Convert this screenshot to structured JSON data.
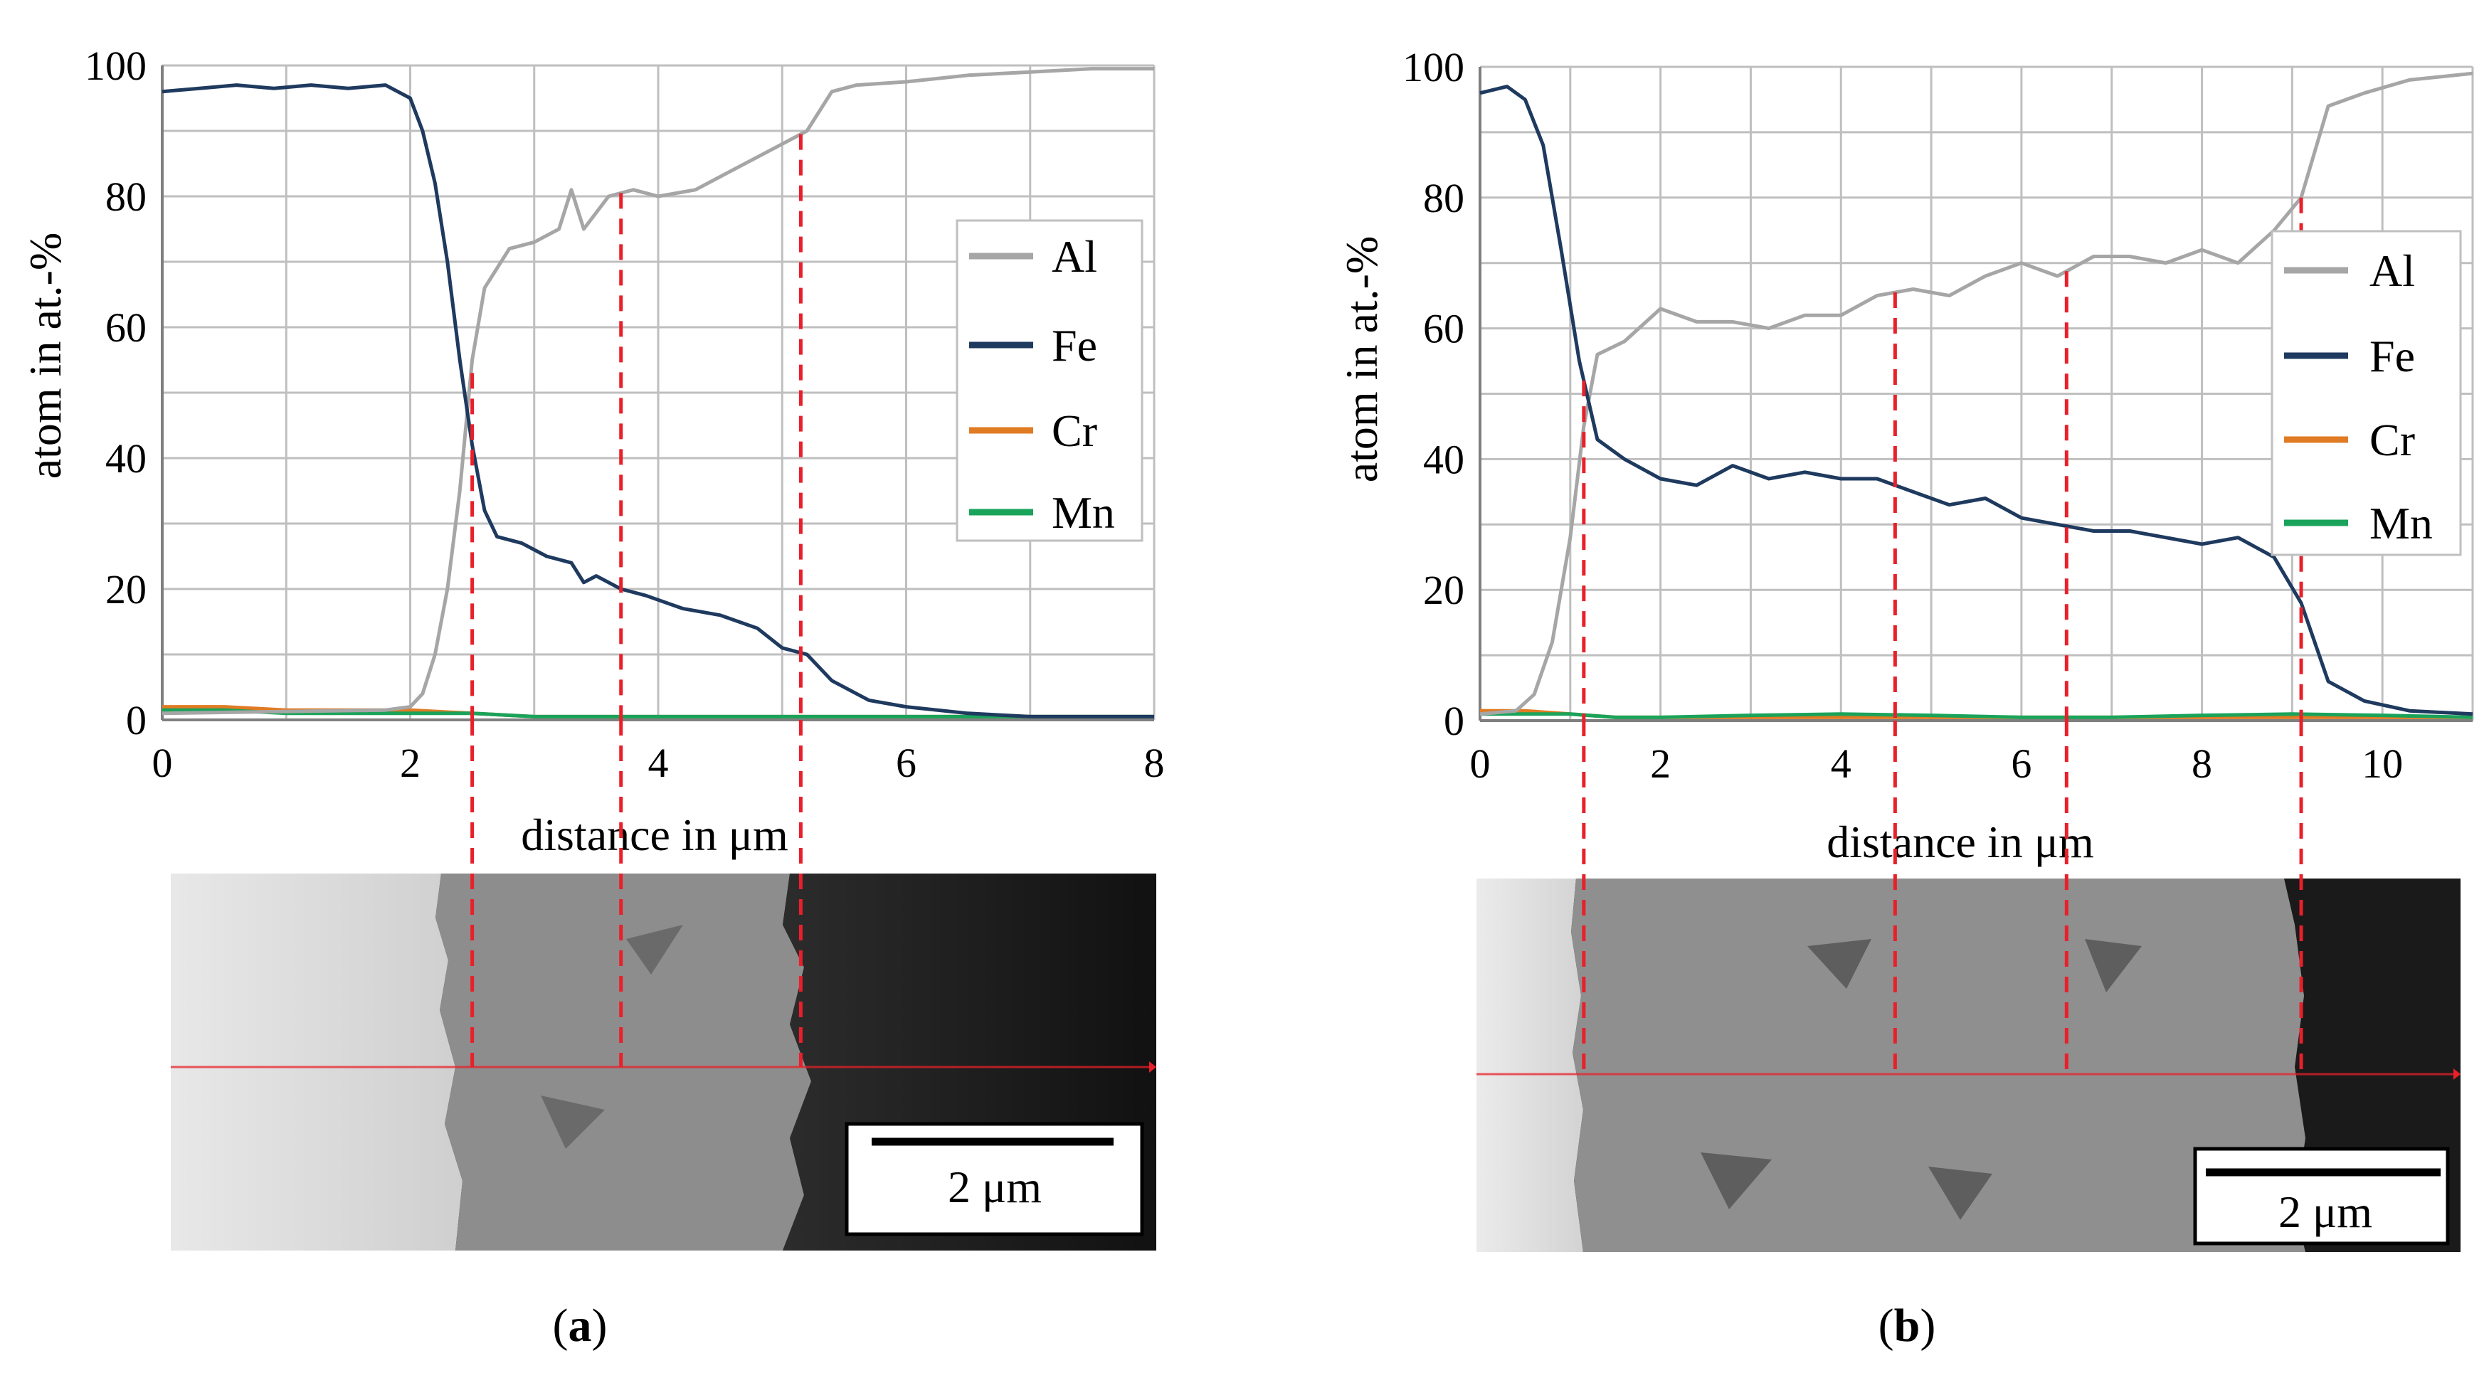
{
  "colors": {
    "Al": "#a6a6a6",
    "Fe": "#1f3a5f",
    "Cr": "#e07b24",
    "Mn": "#1aa35a",
    "marker": "#e8202a",
    "grid": "#bfbfbf"
  },
  "chart_data": [
    {
      "type": "line",
      "panel": "a",
      "caption_open": "(",
      "caption_letter": "a",
      "caption_close": ")",
      "xlabel": "distance in μm",
      "ylabel": "atom in at.-%",
      "xlim": [
        0,
        8
      ],
      "ylim": [
        0,
        100
      ],
      "xticks": [
        0,
        2,
        4,
        6,
        8
      ],
      "yticks": [
        0,
        20,
        40,
        60,
        80,
        100
      ],
      "scale_bar_label": "2 μm",
      "markers_x": [
        2.5,
        3.7,
        5.15
      ],
      "legend": [
        "Al",
        "Fe",
        "Cr",
        "Mn"
      ],
      "series": [
        {
          "name": "Al",
          "x": [
            0,
            1.8,
            2.0,
            2.1,
            2.2,
            2.3,
            2.4,
            2.5,
            2.6,
            2.8,
            3.0,
            3.2,
            3.3,
            3.4,
            3.6,
            3.8,
            4.0,
            4.3,
            4.6,
            5.0,
            5.2,
            5.4,
            5.6,
            6.0,
            6.5,
            7.0,
            7.5,
            8.0
          ],
          "y": [
            1,
            1.5,
            2,
            4,
            10,
            20,
            35,
            55,
            66,
            72,
            73,
            75,
            81,
            75,
            80,
            81,
            80,
            81,
            84,
            88,
            90,
            96,
            97,
            97.5,
            98.5,
            99,
            99.5,
            99.5
          ]
        },
        {
          "name": "Fe",
          "x": [
            0,
            0.3,
            0.6,
            0.9,
            1.2,
            1.5,
            1.8,
            2.0,
            2.1,
            2.2,
            2.3,
            2.4,
            2.5,
            2.6,
            2.7,
            2.9,
            3.1,
            3.3,
            3.4,
            3.5,
            3.7,
            3.9,
            4.2,
            4.5,
            4.8,
            5.0,
            5.2,
            5.4,
            5.7,
            6.0,
            6.5,
            7.0,
            8.0
          ],
          "y": [
            96,
            96.5,
            97,
            96.5,
            97,
            96.5,
            97,
            95,
            90,
            82,
            70,
            55,
            42,
            32,
            28,
            27,
            25,
            24,
            21,
            22,
            20,
            19,
            17,
            16,
            14,
            11,
            10,
            6,
            3,
            2,
            1,
            0.5,
            0.5
          ]
        },
        {
          "name": "Cr",
          "x": [
            0,
            0.5,
            1.0,
            1.5,
            2.0,
            2.5,
            3.0,
            4.0,
            5.0,
            6.0,
            7.0,
            8.0
          ],
          "y": [
            2,
            2,
            1.5,
            1.5,
            1.5,
            1,
            0.5,
            0.5,
            0.5,
            0.5,
            0.5,
            0.5
          ]
        },
        {
          "name": "Mn",
          "x": [
            0,
            0.5,
            1.0,
            1.5,
            2.0,
            2.5,
            3.0,
            4.0,
            5.0,
            6.0,
            7.0,
            8.0
          ],
          "y": [
            1.5,
            1.5,
            1,
            1,
            1,
            1,
            0.5,
            0.5,
            0.5,
            0.5,
            0.5,
            0.5
          ]
        }
      ]
    },
    {
      "type": "line",
      "panel": "b",
      "caption_open": "(",
      "caption_letter": "b",
      "caption_close": ")",
      "xlabel": "distance in μm",
      "ylabel": "atom in at.-%",
      "xlim": [
        0,
        11
      ],
      "ylim": [
        0,
        100
      ],
      "xticks": [
        0,
        2,
        4,
        6,
        8,
        10
      ],
      "yticks": [
        0,
        20,
        40,
        60,
        80,
        100
      ],
      "scale_bar_label": "2 μm",
      "markers_x": [
        1.15,
        4.6,
        6.5,
        9.1
      ],
      "legend": [
        "Al",
        "Fe",
        "Cr",
        "Mn"
      ],
      "series": [
        {
          "name": "Al",
          "x": [
            0,
            0.4,
            0.6,
            0.8,
            1.0,
            1.15,
            1.3,
            1.6,
            2.0,
            2.4,
            2.8,
            3.2,
            3.6,
            4.0,
            4.4,
            4.8,
            5.2,
            5.6,
            6.0,
            6.4,
            6.8,
            7.2,
            7.6,
            8.0,
            8.4,
            8.8,
            9.1,
            9.4,
            9.8,
            10.3,
            11.0
          ],
          "y": [
            1,
            1.5,
            4,
            12,
            28,
            45,
            56,
            58,
            63,
            61,
            61,
            60,
            62,
            62,
            65,
            66,
            65,
            68,
            70,
            68,
            71,
            71,
            70,
            72,
            70,
            75,
            80,
            94,
            96,
            98,
            99
          ]
        },
        {
          "name": "Fe",
          "x": [
            0,
            0.3,
            0.5,
            0.7,
            0.9,
            1.1,
            1.3,
            1.6,
            2.0,
            2.4,
            2.8,
            3.2,
            3.6,
            4.0,
            4.4,
            4.8,
            5.2,
            5.6,
            6.0,
            6.4,
            6.8,
            7.2,
            7.6,
            8.0,
            8.4,
            8.8,
            9.1,
            9.4,
            9.8,
            10.3,
            11.0
          ],
          "y": [
            96,
            97,
            95,
            88,
            72,
            55,
            43,
            40,
            37,
            36,
            39,
            37,
            38,
            37,
            37,
            35,
            33,
            34,
            31,
            30,
            29,
            29,
            28,
            27,
            28,
            25,
            18,
            6,
            3,
            1.5,
            1
          ]
        },
        {
          "name": "Cr",
          "x": [
            0,
            0.5,
            1.0,
            1.5,
            2.0,
            3.0,
            4.0,
            5.0,
            6.0,
            7.0,
            8.0,
            9.0,
            10.0,
            11.0
          ],
          "y": [
            1.5,
            1.5,
            1,
            0.5,
            0.5,
            0.5,
            0.5,
            0.5,
            0.5,
            0.5,
            0.5,
            0.5,
            0.5,
            0.5
          ]
        },
        {
          "name": "Mn",
          "x": [
            0,
            0.5,
            1.0,
            1.5,
            2.0,
            3.0,
            4.0,
            5.0,
            6.0,
            7.0,
            8.0,
            9.0,
            10.0,
            11.0
          ],
          "y": [
            1,
            1,
            1,
            0.5,
            0.5,
            0.8,
            1,
            0.8,
            0.5,
            0.5,
            0.8,
            1,
            0.8,
            0.5
          ]
        }
      ]
    }
  ]
}
